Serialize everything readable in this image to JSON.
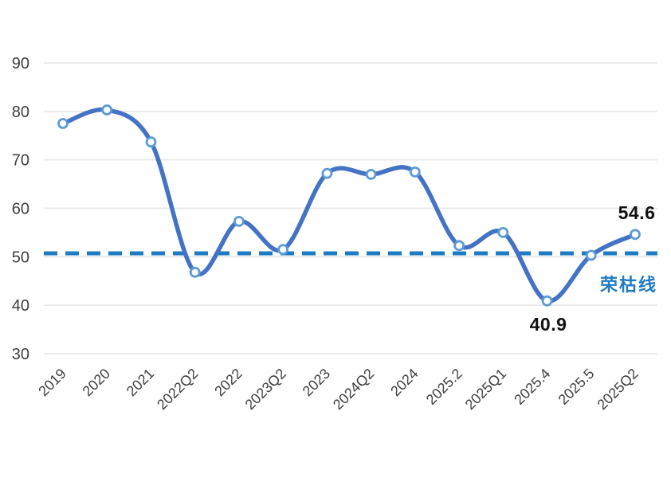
{
  "page": {
    "background": "#ffffff"
  },
  "chart_data": {
    "type": "line",
    "title": "",
    "xlabel": "",
    "ylabel": "",
    "categories": [
      "2019",
      "2020",
      "2021",
      "2022Q2",
      "2022",
      "2023Q2",
      "2023",
      "2024Q2",
      "2024",
      "2025.2",
      "2025Q1",
      "2025.4",
      "2025.5",
      "2025Q2"
    ],
    "values": [
      77.5,
      80.3,
      73.7,
      46.8,
      57.3,
      51.5,
      67.2,
      67.0,
      67.5,
      52.3,
      55.0,
      40.9,
      50.3,
      54.6
    ],
    "yticks": [
      30,
      40,
      50,
      60,
      70,
      80,
      90
    ],
    "ylim": [
      30,
      93
    ],
    "grid": true,
    "legend_position": "none",
    "x_label_rotation_deg": -45,
    "threshold": {
      "value": 50.7,
      "label": "荣枯线"
    },
    "annotations": [
      {
        "category": "2025.4",
        "value": 40.9,
        "text": "40.9",
        "position": "below"
      },
      {
        "category": "2025Q2",
        "value": 54.6,
        "text": "54.6",
        "position": "above"
      }
    ],
    "colors": {
      "line": "#4472C4",
      "marker_ring": "#5B9BD5",
      "marker_fill": "#FFFFFF",
      "threshold": "#1F7CC4",
      "gridline": "#E8E8E8",
      "tick_label": "#3F3F3F",
      "annotation_text": "#111111"
    }
  }
}
